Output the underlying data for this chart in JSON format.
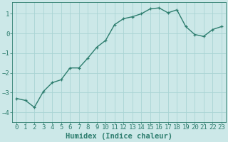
{
  "x": [
    0,
    1,
    2,
    3,
    4,
    5,
    6,
    7,
    8,
    9,
    10,
    11,
    12,
    13,
    14,
    15,
    16,
    17,
    18,
    19,
    20,
    21,
    22,
    23
  ],
  "y": [
    -3.3,
    -3.4,
    -3.75,
    -2.95,
    -2.5,
    -2.35,
    -1.75,
    -1.75,
    -1.25,
    -0.7,
    -0.35,
    0.45,
    0.75,
    0.85,
    1.0,
    1.25,
    1.3,
    1.05,
    1.2,
    0.35,
    -0.05,
    -0.15,
    0.2,
    0.35
  ],
  "line_color": "#2d7d6e",
  "marker": "+",
  "bg_color": "#cce8e8",
  "grid_color": "#aad4d4",
  "xlabel": "Humidex (Indice chaleur)",
  "ylim": [
    -4.5,
    1.6
  ],
  "xlim": [
    -0.5,
    23.5
  ],
  "yticks": [
    -4,
    -3,
    -2,
    -1,
    0,
    1
  ],
  "xlabel_fontsize": 7.5,
  "tick_fontsize": 6.5,
  "line_width": 1.0
}
